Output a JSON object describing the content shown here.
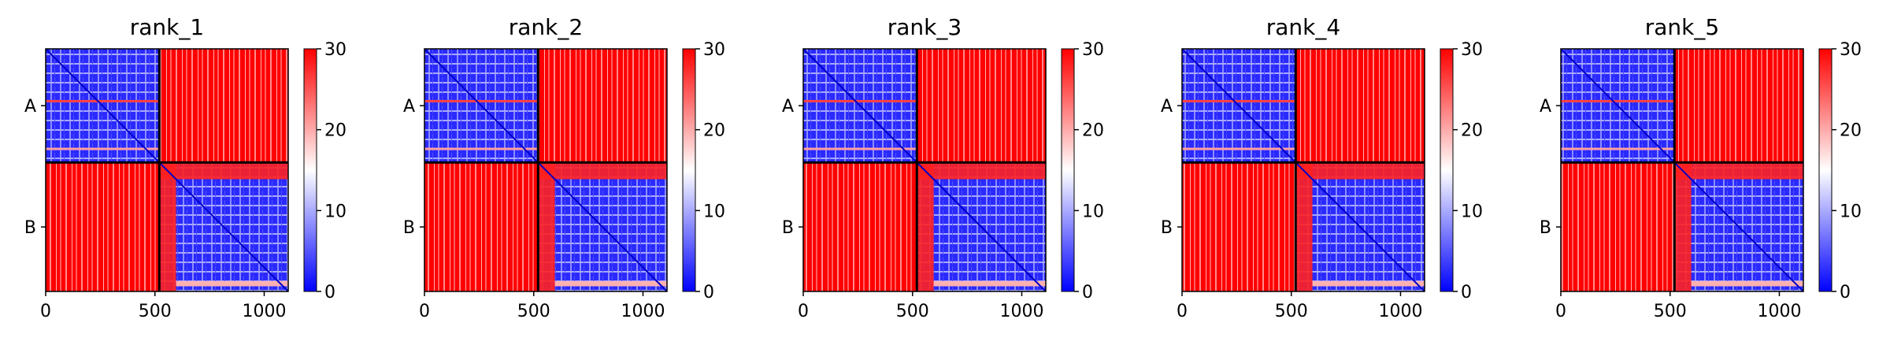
{
  "chart_data": {
    "type": "heatmap",
    "colormap": {
      "name": "bwr",
      "low": "#0000ff",
      "mid": "#ffffff",
      "high": "#ff0000"
    },
    "vmin": 0,
    "vmax": 30,
    "colorbar_ticks": [
      "0",
      "10",
      "20",
      "30"
    ],
    "chain_labels": [
      "A",
      "B"
    ],
    "chain_boundary": 520,
    "length": 1110,
    "x_ticks": [
      0,
      500,
      1000
    ],
    "x_tick_labels": [
      "0",
      "500",
      "1000"
    ],
    "block_levels": {
      "intra_chain": "low",
      "inter_chain": "high"
    },
    "panels": [
      {
        "title": "rank_1"
      },
      {
        "title": "rank_2"
      },
      {
        "title": "rank_3"
      },
      {
        "title": "rank_4"
      },
      {
        "title": "rank_5"
      }
    ]
  }
}
